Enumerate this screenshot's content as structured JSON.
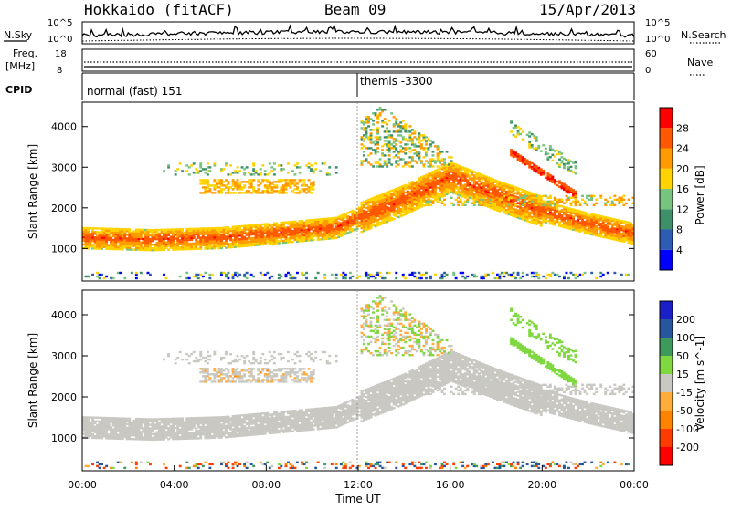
{
  "header": {
    "station": "Hokkaido (fitACF)",
    "beam": "Beam 09",
    "date": "15/Apr/2013"
  },
  "noise_panel": {
    "left_label": "N.Sky",
    "right_label": "N.Search",
    "tick_top": "10^5",
    "tick_bottom": "10^0"
  },
  "freq_panel": {
    "left_label_1": "Freq.",
    "left_label_2": "[MHz]",
    "right_label": "Nave",
    "left_ticks": [
      "18",
      "8"
    ],
    "right_ticks": [
      "60",
      "0"
    ]
  },
  "cpid_panel": {
    "label": "CPID",
    "modes": [
      {
        "name": "normal (fast) 151",
        "start": "00:00"
      },
      {
        "name": "themis -3300",
        "start": "12:00"
      }
    ]
  },
  "colors": {
    "power": [
      "#0000ff",
      "#2c5cb4",
      "#3e8f6a",
      "#77c47f",
      "#ffd200",
      "#ff9a00",
      "#ff5800",
      "#ff0000"
    ],
    "velocity": [
      "#ff0000",
      "#ff3b00",
      "#ff8200",
      "#ffac3a",
      "#c9c8c2",
      "#7fd840",
      "#3e9a5a",
      "#25569e",
      "#1a1fc8"
    ]
  },
  "chart_data": [
    {
      "type": "heatmap",
      "title": "",
      "xlabel": "",
      "ylabel": "Slant Range [km]",
      "x_range": [
        "00:00",
        "24:00"
      ],
      "ylim": [
        200,
        4600
      ],
      "yticks": [
        1000,
        2000,
        3000,
        4000
      ],
      "colorbar": {
        "label": "Power [dB]",
        "range": [
          0,
          32
        ],
        "ticks": [
          4,
          8,
          12,
          16,
          20,
          24,
          28
        ]
      },
      "features": [
        {
          "name": "main band",
          "time_start": 0.0,
          "time_end": 24.0,
          "range_profile": [
            [
              0,
              1250
            ],
            [
              3,
              1200
            ],
            [
              6,
              1250
            ],
            [
              9,
              1400
            ],
            [
              11,
              1500
            ],
            [
              12,
              1750
            ],
            [
              14,
              2200
            ],
            [
              16,
              2750
            ],
            [
              18,
              2300
            ],
            [
              20,
              1900
            ],
            [
              22,
              1600
            ],
            [
              24,
              1350
            ]
          ],
          "power": 26
        },
        {
          "name": "upper band",
          "time_start": 5.0,
          "time_end": 10.0,
          "range_center": 2500,
          "power": 20
        },
        {
          "name": "descending trace",
          "time_start": 18.5,
          "time_end": 21.5,
          "range_start": 3400,
          "range_end": 2300,
          "power": 26
        }
      ]
    },
    {
      "type": "heatmap",
      "title": "",
      "xlabel": "Time UT",
      "ylabel": "Slant Range [km]",
      "x_range": [
        "00:00",
        "24:00"
      ],
      "xticks": [
        "00:00",
        "04:00",
        "08:00",
        "12:00",
        "16:00",
        "20:00",
        "00:00"
      ],
      "ylim": [
        200,
        4600
      ],
      "yticks": [
        1000,
        2000,
        3000,
        4000
      ],
      "colorbar": {
        "label": "Velocity [m s^-1]",
        "range": [
          -250,
          250
        ],
        "ticks": [
          200,
          100,
          50,
          15,
          -15,
          -50,
          -100,
          -200
        ]
      },
      "features": [
        {
          "name": "ground scatter band",
          "velocity": 0
        },
        {
          "name": "descending trace",
          "time_start": 18.5,
          "time_end": 21.5,
          "velocity": 30
        }
      ]
    }
  ]
}
